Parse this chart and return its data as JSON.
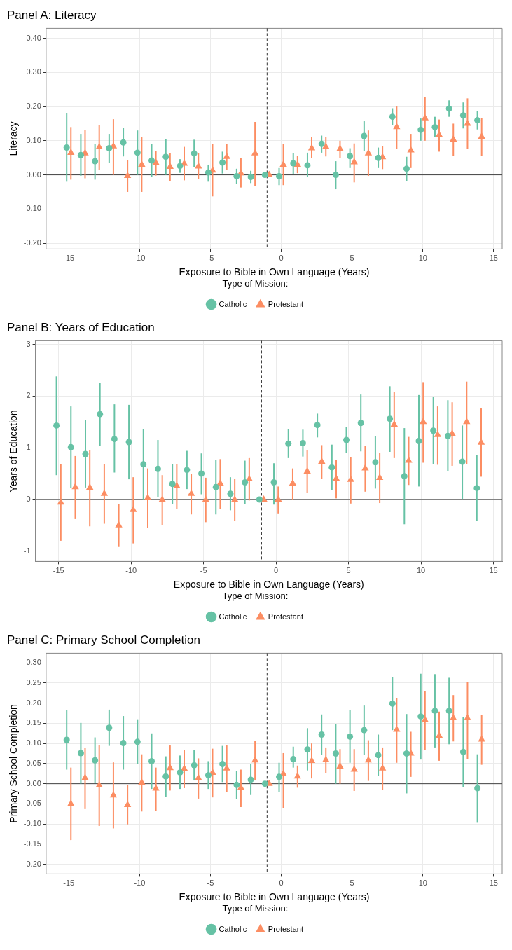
{
  "chart_data": [
    {
      "type": "scatter",
      "title": "Panel A: Literacy",
      "xlabel": "Exposure to Bible in Own Language (Years)",
      "ylabel": "Literacy",
      "legend_title": "Type of Mission:",
      "legend": "bottom",
      "grid": true,
      "xlim": [
        -16.6,
        15.6
      ],
      "xticks": [
        -15,
        -10,
        -5,
        0,
        5,
        10,
        15
      ],
      "ylim": [
        -0.217,
        0.429
      ],
      "yticks": [
        {
          "value": -0.2,
          "label": "-0.20"
        },
        {
          "value": -0.1,
          "label": "-0.10"
        },
        {
          "value": 0,
          "label": "0.00"
        },
        {
          "value": 0.1,
          "label": "0.10"
        },
        {
          "value": 0.2,
          "label": "0.20"
        },
        {
          "value": 0.3,
          "label": "0.30"
        },
        {
          "value": 0.4,
          "label": "0.40"
        }
      ],
      "ref_lines": [
        {
          "axis": "x",
          "value": -1,
          "line_style": "dashed",
          "color": "#333333"
        },
        {
          "axis": "y",
          "value": 0,
          "line_style": "solid",
          "color": "#444444"
        }
      ],
      "series": [
        {
          "name": "Catholic",
          "color": "#66c2a5",
          "marker": "circle",
          "x": [
            -15.15,
            -14.15,
            -13.15,
            -12.15,
            -11.15,
            -10.15,
            -9.15,
            -8.15,
            -7.15,
            -6.15,
            -5.15,
            -4.15,
            -3.15,
            -2.15,
            -1.15,
            -0.15,
            0.85,
            1.85,
            2.85,
            3.85,
            4.85,
            5.85,
            6.85,
            7.85,
            8.85,
            9.85,
            10.85,
            11.85,
            12.85,
            13.85
          ],
          "values": [
            0.08,
            0.058,
            0.04,
            0.078,
            0.095,
            0.065,
            0.042,
            0.053,
            0.026,
            0.063,
            0.007,
            0.036,
            -0.004,
            -0.006,
            0,
            -0.004,
            0.034,
            0.028,
            0.091,
            0,
            0.055,
            0.114,
            0.05,
            0.17,
            0.018,
            0.132,
            0.14,
            0.194,
            0.174,
            0.16
          ],
          "errors": [
            [
              -0.02,
              0.18
            ],
            [
              -0.003,
              0.12
            ],
            [
              -0.014,
              0.09
            ],
            [
              0.035,
              0.12
            ],
            [
              0.054,
              0.137
            ],
            [
              0,
              0.13
            ],
            [
              -0.005,
              0.09
            ],
            [
              0,
              0.104
            ],
            [
              0.006,
              0.046
            ],
            [
              0.022,
              0.103
            ],
            [
              -0.02,
              0.03
            ],
            [
              0.004,
              0.068
            ],
            [
              -0.026,
              0.018
            ],
            [
              -0.024,
              0.012
            ],
            null,
            [
              -0.03,
              0.02
            ],
            [
              0.002,
              0.064
            ],
            [
              -0.005,
              0.065
            ],
            [
              0.065,
              0.115
            ],
            [
              -0.042,
              0.04
            ],
            [
              0.02,
              0.078
            ],
            [
              0.07,
              0.157
            ],
            [
              0.02,
              0.08
            ],
            [
              0.145,
              0.195
            ],
            [
              -0.018,
              0.053
            ],
            [
              0.1,
              0.165
            ],
            [
              0.11,
              0.17
            ],
            [
              0.17,
              0.218
            ],
            [
              0.136,
              0.212
            ],
            [
              0.133,
              0.186
            ]
          ]
        },
        {
          "name": "Protestant",
          "color": "#fc8d62",
          "marker": "triangle",
          "x": [
            -14.85,
            -13.85,
            -12.85,
            -11.85,
            -10.85,
            -9.85,
            -8.85,
            -7.85,
            -6.85,
            -5.85,
            -4.85,
            -3.85,
            -2.85,
            -1.85,
            -0.85,
            0.15,
            1.15,
            2.15,
            3.15,
            4.15,
            5.15,
            6.15,
            7.15,
            8.15,
            9.15,
            10.15,
            11.15,
            12.15,
            13.15,
            14.15
          ],
          "values": [
            0.065,
            0.063,
            0.081,
            0.084,
            -0.003,
            0.03,
            0.035,
            0.024,
            0.033,
            0.025,
            0.013,
            0.053,
            0.005,
            0.063,
            0,
            0.03,
            0.03,
            0.078,
            0.082,
            0.076,
            0.037,
            0.063,
            0.052,
            0.14,
            0.072,
            0.166,
            0.117,
            0.104,
            0.15,
            0.112
          ],
          "errors": [
            [
              -0.014,
              0.14
            ],
            [
              -0.01,
              0.132
            ],
            [
              0.015,
              0.145
            ],
            [
              0,
              0.163
            ],
            [
              -0.05,
              0.044
            ],
            [
              -0.05,
              0.11
            ],
            [
              -0.002,
              0.07
            ],
            [
              -0.018,
              0.063
            ],
            [
              -0.016,
              0.082
            ],
            [
              -0.013,
              0.063
            ],
            [
              -0.063,
              0.09
            ],
            [
              0.015,
              0.09
            ],
            [
              -0.037,
              0.05
            ],
            [
              -0.033,
              0.155
            ],
            null,
            [
              -0.03,
              0.09
            ],
            [
              0.005,
              0.055
            ],
            [
              0.05,
              0.11
            ],
            [
              0.054,
              0.11
            ],
            [
              0.05,
              0.1
            ],
            [
              -0.022,
              0.092
            ],
            [
              -0.003,
              0.13
            ],
            [
              0.017,
              0.085
            ],
            [
              0.075,
              0.2
            ],
            [
              0.02,
              0.12
            ],
            [
              0.1,
              0.228
            ],
            [
              0.068,
              0.162
            ],
            [
              0.056,
              0.15
            ],
            [
              0.075,
              0.224
            ],
            [
              0.055,
              0.166
            ]
          ]
        }
      ]
    },
    {
      "type": "scatter",
      "title": "Panel B: Years of Education",
      "xlabel": "Exposure to Bible in Own Language (Years)",
      "ylabel": "Years of Education",
      "legend_title": "Type of Mission:",
      "legend": "bottom",
      "grid": true,
      "xlim": [
        -16.6,
        15.6
      ],
      "xticks": [
        -15,
        -10,
        -5,
        0,
        5,
        10,
        15
      ],
      "ylim": [
        -1.2,
        3.07
      ],
      "yticks": [
        -1,
        0,
        1,
        2,
        3
      ],
      "ref_lines": [
        {
          "axis": "x",
          "value": -1,
          "line_style": "dashed",
          "color": "#333333"
        },
        {
          "axis": "y",
          "value": 0,
          "line_style": "solid",
          "color": "#444444"
        }
      ],
      "series": [
        {
          "name": "Catholic",
          "color": "#66c2a5",
          "marker": "circle",
          "x": [
            -15.15,
            -14.15,
            -13.15,
            -12.15,
            -11.15,
            -10.15,
            -9.15,
            -8.15,
            -7.15,
            -6.15,
            -5.15,
            -4.15,
            -3.15,
            -2.15,
            -1.15,
            -0.15,
            0.85,
            1.85,
            2.85,
            3.85,
            4.85,
            5.85,
            6.85,
            7.85,
            8.85,
            9.85,
            10.85,
            11.85,
            12.85,
            13.85
          ],
          "values": [
            1.43,
            1.01,
            0.88,
            1.65,
            1.17,
            1.11,
            0.68,
            0.59,
            0.3,
            0.57,
            0.5,
            0.24,
            0.11,
            0.33,
            0,
            0.33,
            1.08,
            1.09,
            1.44,
            0.62,
            1.15,
            1.48,
            0.72,
            1.56,
            0.45,
            1.13,
            1.33,
            1.23,
            0.73,
            0.22
          ],
          "errors": [
            [
              0.47,
              2.38
            ],
            [
              0.22,
              1.8
            ],
            [
              0.23,
              1.54
            ],
            [
              1.04,
              2.26
            ],
            [
              0.52,
              1.84
            ],
            [
              0.39,
              1.83
            ],
            [
              0,
              1.36
            ],
            [
              0.04,
              1.15
            ],
            [
              -0.09,
              0.69
            ],
            [
              0.2,
              0.94
            ],
            [
              0.1,
              0.89
            ],
            [
              -0.29,
              0.76
            ],
            [
              -0.21,
              0.43
            ],
            [
              -0.09,
              0.75
            ],
            null,
            [
              -0.1,
              0.7
            ],
            [
              0.8,
              1.36
            ],
            [
              0.83,
              1.35
            ],
            [
              1.2,
              1.66
            ],
            [
              0.18,
              1.06
            ],
            [
              0.9,
              1.4
            ],
            [
              0.93,
              2.03
            ],
            [
              0.21,
              1.22
            ],
            [
              0.92,
              2.19
            ],
            [
              -0.48,
              1.38
            ],
            [
              0.25,
              2.02
            ],
            [
              0.68,
              1.98
            ],
            [
              0.55,
              1.92
            ],
            [
              0.01,
              1.43
            ],
            [
              -0.41,
              0.86
            ]
          ]
        },
        {
          "name": "Protestant",
          "color": "#fc8d62",
          "marker": "triangle",
          "x": [
            -14.85,
            -13.85,
            -12.85,
            -11.85,
            -10.85,
            -9.85,
            -8.85,
            -7.85,
            -6.85,
            -5.85,
            -4.85,
            -3.85,
            -2.85,
            -1.85,
            -0.85,
            0.15,
            1.15,
            2.15,
            3.15,
            4.15,
            5.15,
            6.15,
            7.15,
            8.15,
            9.15,
            10.15,
            11.15,
            12.15,
            13.15,
            14.15
          ],
          "values": [
            -0.06,
            0.24,
            0.23,
            0.11,
            -0.5,
            -0.2,
            0.03,
            -0.01,
            0.26,
            0.11,
            -0.01,
            0.31,
            -0.01,
            0.39,
            0,
            0,
            0.31,
            0.54,
            0.73,
            0.4,
            0.38,
            0.6,
            0.42,
            1.45,
            0.75,
            1.5,
            1.25,
            1.27,
            1.5,
            1.1
          ],
          "errors": [
            [
              -0.8,
              0.68
            ],
            [
              -0.38,
              0.84
            ],
            [
              -0.52,
              0.96
            ],
            [
              -0.47,
              0.68
            ],
            [
              -0.92,
              -0.09
            ],
            [
              -0.85,
              0.43
            ],
            [
              -0.55,
              0.6
            ],
            [
              -0.5,
              0.47
            ],
            [
              -0.19,
              0.68
            ],
            [
              -0.29,
              0.49
            ],
            [
              -0.44,
              0.42
            ],
            [
              -0.18,
              0.78
            ],
            [
              -0.42,
              0.4
            ],
            [
              -0.02,
              0.8
            ],
            null,
            [
              -0.27,
              0.25
            ],
            [
              0,
              0.6
            ],
            [
              0.12,
              0.95
            ],
            [
              0.4,
              1.05
            ],
            [
              0.02,
              0.77
            ],
            [
              -0.08,
              0.82
            ],
            [
              0.15,
              1.03
            ],
            [
              -0.07,
              0.9
            ],
            [
              0.8,
              2.08
            ],
            [
              0.28,
              1.21
            ],
            [
              0.71,
              2.27
            ],
            [
              0.67,
              1.8
            ],
            [
              0.65,
              1.88
            ],
            [
              0.68,
              2.28
            ],
            [
              0.44,
              1.76
            ]
          ]
        }
      ]
    },
    {
      "type": "scatter",
      "title": "Panel C: Primary School Completion",
      "xlabel": "Exposure to Bible in Own Language (Years)",
      "ylabel": "Primary School Completion",
      "legend_title": "Type of Mission:",
      "legend": "bottom",
      "grid": true,
      "xlim": [
        -16.6,
        15.6
      ],
      "xticks": [
        -15,
        -10,
        -5,
        0,
        5,
        10,
        15
      ],
      "ylim": [
        -0.224,
        0.324
      ],
      "yticks": [
        {
          "value": -0.2,
          "label": "-0.20"
        },
        {
          "value": -0.15,
          "label": "-0.15"
        },
        {
          "value": -0.1,
          "label": "-0.10"
        },
        {
          "value": -0.05,
          "label": "-0.05"
        },
        {
          "value": 0,
          "label": "0.00"
        },
        {
          "value": 0.05,
          "label": "0.05"
        },
        {
          "value": 0.1,
          "label": "0.10"
        },
        {
          "value": 0.15,
          "label": "0.15"
        },
        {
          "value": 0.2,
          "label": "0.20"
        },
        {
          "value": 0.25,
          "label": "0.25"
        },
        {
          "value": 0.3,
          "label": "0.30"
        }
      ],
      "ref_lines": [
        {
          "axis": "x",
          "value": -1,
          "line_style": "dashed",
          "color": "#333333"
        },
        {
          "axis": "y",
          "value": 0,
          "line_style": "solid",
          "color": "#444444"
        }
      ],
      "series": [
        {
          "name": "Catholic",
          "color": "#66c2a5",
          "marker": "circle",
          "x": [
            -15.15,
            -14.15,
            -13.15,
            -12.15,
            -11.15,
            -10.15,
            -9.15,
            -8.15,
            -7.15,
            -6.15,
            -5.15,
            -4.15,
            -3.15,
            -2.15,
            -1.15,
            -0.15,
            0.85,
            1.85,
            2.85,
            3.85,
            4.85,
            5.85,
            6.85,
            7.85,
            8.85,
            9.85,
            10.85,
            11.85,
            12.85,
            13.85
          ],
          "values": [
            0.109,
            0.076,
            0.058,
            0.139,
            0.101,
            0.104,
            0.056,
            0.018,
            0.028,
            0.046,
            0.021,
            0.049,
            -0.003,
            0.01,
            0,
            0.017,
            0.061,
            0.085,
            0.122,
            0.075,
            0.117,
            0.133,
            0.071,
            0.199,
            0.075,
            0.167,
            0.181,
            0.181,
            0.079,
            -0.011
          ],
          "errors": [
            [
              0.035,
              0.183
            ],
            [
              0,
              0.151
            ],
            [
              0.002,
              0.115
            ],
            [
              0.094,
              0.184
            ],
            [
              0.035,
              0.168
            ],
            [
              0.049,
              0.16
            ],
            [
              -0.013,
              0.125
            ],
            [
              -0.032,
              0.068
            ],
            [
              -0.013,
              0.07
            ],
            [
              0.008,
              0.084
            ],
            [
              -0.013,
              0.056
            ],
            [
              0.004,
              0.094
            ],
            [
              -0.038,
              0.031
            ],
            [
              -0.028,
              0.049
            ],
            null,
            [
              -0.02,
              0.052
            ],
            [
              0.04,
              0.092
            ],
            [
              0.033,
              0.138
            ],
            [
              0.072,
              0.172
            ],
            [
              0,
              0.149
            ],
            [
              0.052,
              0.183
            ],
            [
              0.072,
              0.194
            ],
            [
              0.02,
              0.122
            ],
            [
              0.133,
              0.265
            ],
            [
              -0.024,
              0.173
            ],
            [
              0.06,
              0.273
            ],
            [
              0.09,
              0.272
            ],
            [
              0.098,
              0.263
            ],
            [
              -0.008,
              0.165
            ],
            [
              -0.097,
              0.073
            ]
          ]
        },
        {
          "name": "Protestant",
          "color": "#fc8d62",
          "marker": "triangle",
          "x": [
            -14.85,
            -13.85,
            -12.85,
            -11.85,
            -10.85,
            -9.85,
            -8.85,
            -7.85,
            -6.85,
            -5.85,
            -4.85,
            -3.85,
            -2.85,
            -1.85,
            -0.85,
            0.15,
            1.15,
            2.15,
            3.15,
            4.15,
            5.15,
            6.15,
            7.15,
            8.15,
            9.15,
            10.15,
            11.15,
            12.15,
            13.15,
            14.15
          ],
          "values": [
            -0.05,
            0.014,
            -0.004,
            -0.029,
            -0.053,
            0.003,
            -0.012,
            0.039,
            0.037,
            0.014,
            0.027,
            0.038,
            -0.01,
            0.058,
            0,
            0.024,
            0.018,
            0.057,
            0.059,
            0.043,
            0.035,
            0.058,
            0.038,
            0.134,
            0.075,
            0.158,
            0.119,
            0.163,
            0.163,
            0.11
          ],
          "errors": [
            [
              -0.14,
              0.04
            ],
            [
              -0.063,
              0.089
            ],
            [
              -0.105,
              0.096
            ],
            [
              -0.111,
              0.053
            ],
            [
              -0.101,
              -0.004
            ],
            [
              -0.069,
              0.073
            ],
            [
              -0.068,
              0.04
            ],
            [
              -0.017,
              0.095
            ],
            [
              -0.011,
              0.084
            ],
            [
              -0.037,
              0.063
            ],
            [
              -0.034,
              0.087
            ],
            [
              -0.02,
              0.095
            ],
            [
              -0.058,
              0.035
            ],
            [
              0.008,
              0.107
            ],
            null,
            [
              -0.06,
              0.076
            ],
            [
              -0.01,
              0.045
            ],
            [
              0.013,
              0.1
            ],
            [
              0.026,
              0.09
            ],
            [
              0,
              0.086
            ],
            [
              -0.018,
              0.086
            ],
            [
              0.007,
              0.108
            ],
            [
              -0.015,
              0.09
            ],
            [
              0.052,
              0.212
            ],
            [
              0.017,
              0.129
            ],
            [
              0.084,
              0.23
            ],
            [
              0.057,
              0.179
            ],
            [
              0.105,
              0.22
            ],
            [
              0.062,
              0.253
            ],
            [
              0.047,
              0.17
            ]
          ]
        }
      ]
    }
  ]
}
